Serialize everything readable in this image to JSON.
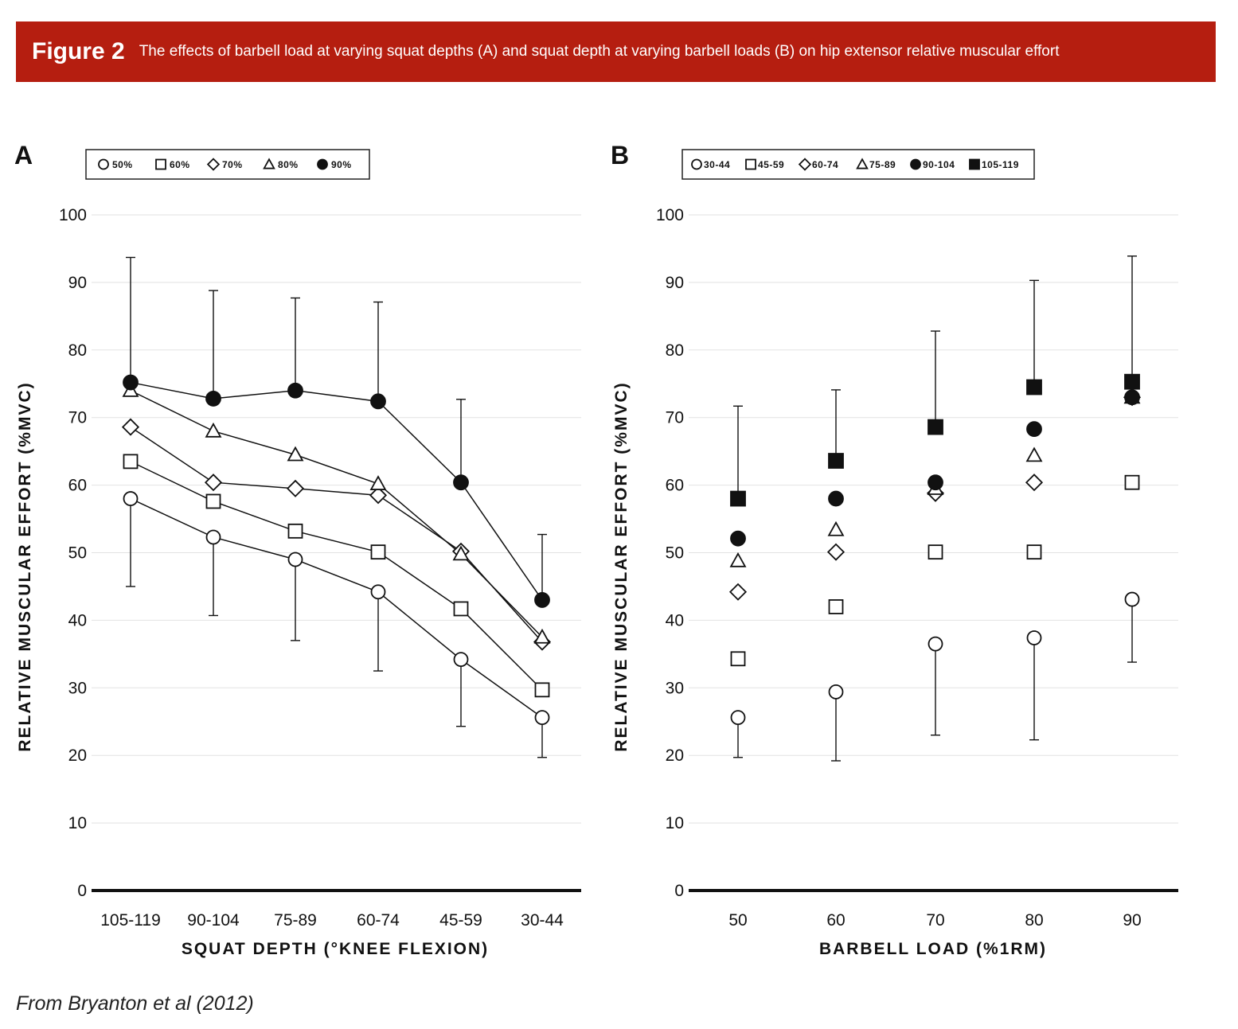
{
  "figure": {
    "label": "Figure 2",
    "caption": "The effects of barbell load at varying squat depths (A) and squat depth at varying barbell loads (B) on hip extensor relative muscular effort",
    "accent_color": "#b51e10"
  },
  "source": "From Bryanton et al (2012)",
  "chart_data": [
    {
      "panel": "A",
      "type": "line",
      "xlabel": "SQUAT DEPTH (°KNEE FLEXION)",
      "ylabel": "RELATIVE MUSCULAR EFFORT (%MVC)",
      "ylim": [
        0,
        100
      ],
      "yticks": [
        0,
        10,
        20,
        30,
        40,
        50,
        60,
        70,
        80,
        90,
        100
      ],
      "grid": true,
      "legend_position": "top",
      "categories": [
        "105-119",
        "90-104",
        "75-89",
        "60-74",
        "45-59",
        "30-44"
      ],
      "series": [
        {
          "name": "50%",
          "marker": "circle-open",
          "values": [
            58,
            52.3,
            49,
            44.2,
            34.2,
            25.6
          ],
          "error_low": [
            45,
            40.7,
            37,
            32.5,
            24.3,
            19.7
          ]
        },
        {
          "name": "60%",
          "marker": "square-open",
          "values": [
            63.5,
            57.6,
            53.2,
            50.1,
            41.7,
            29.7
          ]
        },
        {
          "name": "70%",
          "marker": "diamond-open",
          "values": [
            68.6,
            60.4,
            59.5,
            58.5,
            50.2,
            36.8
          ]
        },
        {
          "name": "80%",
          "marker": "triangle-open",
          "values": [
            74,
            68,
            64.5,
            60.2,
            49.8,
            37.5
          ]
        },
        {
          "name": "90%",
          "marker": "circle-filled",
          "values": [
            75.2,
            72.8,
            74,
            72.4,
            60.4,
            43
          ],
          "error_high": [
            93.7,
            88.8,
            87.7,
            87.1,
            72.7,
            52.7
          ]
        }
      ]
    },
    {
      "panel": "B",
      "type": "scatter",
      "xlabel": "BARBELL LOAD (%1RM)",
      "ylabel": "RELATIVE MUSCULAR EFFORT (%MVC)",
      "ylim": [
        0,
        100
      ],
      "yticks": [
        0,
        10,
        20,
        30,
        40,
        50,
        60,
        70,
        80,
        90,
        100
      ],
      "grid": true,
      "legend_position": "top",
      "categories": [
        "50",
        "60",
        "70",
        "80",
        "90"
      ],
      "series": [
        {
          "name": "30-44",
          "marker": "circle-open",
          "values": [
            25.6,
            29.4,
            36.5,
            37.4,
            43.1
          ],
          "error_low": [
            19.7,
            19.2,
            23,
            22.3,
            33.8
          ]
        },
        {
          "name": "45-59",
          "marker": "square-open",
          "values": [
            34.3,
            42,
            50.1,
            50.1,
            60.4
          ]
        },
        {
          "name": "60-74",
          "marker": "diamond-open",
          "values": [
            44.2,
            50.1,
            58.8,
            60.4,
            73
          ]
        },
        {
          "name": "75-89",
          "marker": "triangle-open",
          "values": [
            48.8,
            53.4,
            59.5,
            64.4,
            73
          ]
        },
        {
          "name": "90-104",
          "marker": "circle-filled",
          "values": [
            52.1,
            58,
            60.4,
            68.3,
            73
          ]
        },
        {
          "name": "105-119",
          "marker": "square-filled",
          "values": [
            58,
            63.6,
            68.6,
            74.5,
            75.3
          ],
          "error_high": [
            71.7,
            74.1,
            82.8,
            90.3,
            93.9
          ]
        }
      ]
    }
  ]
}
